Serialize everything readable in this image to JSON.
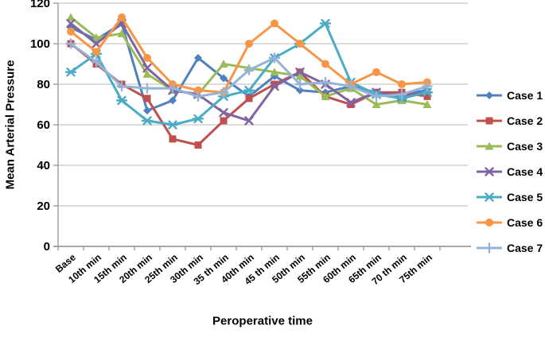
{
  "chart_data": {
    "type": "line",
    "title": "",
    "xlabel": "Peroperative time",
    "ylabel": "Mean Arterial Pressure",
    "ylim": [
      0,
      120
    ],
    "yticks": [
      0,
      20,
      40,
      60,
      80,
      100,
      120
    ],
    "grid": "horizontal",
    "legend_position": "right",
    "categories": [
      "Base",
      "10th min",
      "15th min",
      "20th min",
      "25th min",
      "30th min",
      "35 th min",
      "40th min",
      "45 th min",
      "50th min",
      "55th min",
      "60th min",
      "65th min",
      "70 th min",
      "75th min"
    ],
    "series": [
      {
        "name": "Case 1",
        "color": "#4F81BD",
        "marker": "diamond",
        "values": [
          108,
          102,
          110,
          67,
          72,
          93,
          83,
          74,
          84,
          77,
          76,
          79,
          76,
          75,
          77
        ]
      },
      {
        "name": "Case 2",
        "color": "#C0504D",
        "marker": "square",
        "values": [
          100,
          90,
          80,
          73,
          53,
          50,
          62,
          73,
          80,
          86,
          74,
          70,
          76,
          76,
          74
        ]
      },
      {
        "name": "Case 3",
        "color": "#9BBB59",
        "marker": "triangle",
        "values": [
          113,
          103,
          105,
          85,
          77,
          75,
          90,
          88,
          86,
          84,
          74,
          78,
          70,
          72,
          70
        ]
      },
      {
        "name": "Case 4",
        "color": "#8064A2",
        "marker": "x",
        "values": [
          110,
          100,
          110,
          88,
          77,
          75,
          66,
          62,
          79,
          86,
          80,
          71,
          76,
          74,
          76
        ]
      },
      {
        "name": "Case 5",
        "color": "#4BACC6",
        "marker": "asterisk",
        "values": [
          86,
          95,
          72,
          62,
          60,
          63,
          74,
          77,
          93,
          100,
          110,
          81,
          75,
          73,
          76
        ]
      },
      {
        "name": "Case 6",
        "color": "#F79646",
        "marker": "circle",
        "values": [
          106,
          96,
          113,
          93,
          80,
          77,
          76,
          100,
          110,
          100,
          90,
          80,
          86,
          80,
          81
        ]
      },
      {
        "name": "Case 7",
        "color": "#95B3D7",
        "marker": "plus",
        "values": [
          100,
          91,
          79,
          78,
          78,
          74,
          76,
          87,
          93,
          80,
          81,
          79,
          74,
          75,
          79
        ]
      }
    ]
  },
  "axes": {
    "axis_color": "#9C9C9C",
    "grid_color": "#C8C8C8",
    "text_color": "#000000"
  }
}
